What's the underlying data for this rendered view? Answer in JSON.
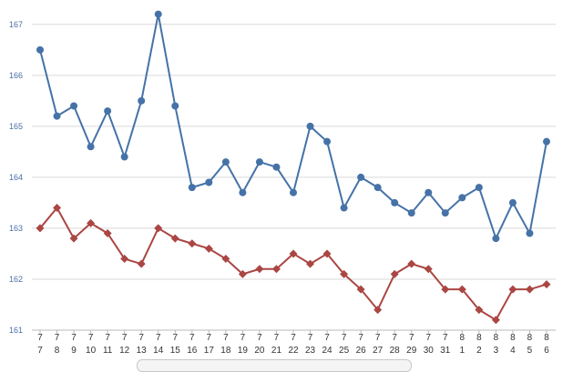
{
  "chart_data": {
    "type": "line",
    "title": "",
    "xlabel": "",
    "ylabel": "",
    "ylim": [
      161,
      167.3
    ],
    "yticks": [
      "161",
      "162",
      "163",
      "164",
      "165",
      "166",
      "167"
    ],
    "grid": true,
    "categories": [
      {
        "month": "7",
        "day": "7"
      },
      {
        "month": "7",
        "day": "8"
      },
      {
        "month": "7",
        "day": "9"
      },
      {
        "month": "7",
        "day": "10"
      },
      {
        "month": "7",
        "day": "11"
      },
      {
        "month": "7",
        "day": "12"
      },
      {
        "month": "7",
        "day": "13"
      },
      {
        "month": "7",
        "day": "14"
      },
      {
        "month": "7",
        "day": "15"
      },
      {
        "month": "7",
        "day": "16"
      },
      {
        "month": "7",
        "day": "17"
      },
      {
        "month": "7",
        "day": "18"
      },
      {
        "month": "7",
        "day": "19"
      },
      {
        "month": "7",
        "day": "20"
      },
      {
        "month": "7",
        "day": "21"
      },
      {
        "month": "7",
        "day": "22"
      },
      {
        "month": "7",
        "day": "23"
      },
      {
        "month": "7",
        "day": "24"
      },
      {
        "month": "7",
        "day": "25"
      },
      {
        "month": "7",
        "day": "26"
      },
      {
        "month": "7",
        "day": "27"
      },
      {
        "month": "7",
        "day": "28"
      },
      {
        "month": "7",
        "day": "29"
      },
      {
        "month": "7",
        "day": "30"
      },
      {
        "month": "7",
        "day": "31"
      },
      {
        "month": "8",
        "day": "1"
      },
      {
        "month": "8",
        "day": "2"
      },
      {
        "month": "8",
        "day": "3"
      },
      {
        "month": "8",
        "day": "4"
      },
      {
        "month": "8",
        "day": "5"
      },
      {
        "month": "8",
        "day": "6"
      }
    ],
    "series": [
      {
        "color": "#4572a7",
        "marker": "circle",
        "values": [
          166.5,
          165.2,
          165.4,
          164.6,
          165.3,
          164.4,
          165.5,
          167.2,
          165.4,
          163.8,
          163.9,
          164.3,
          163.7,
          164.3,
          164.2,
          163.7,
          165.0,
          164.7,
          163.4,
          164.0,
          163.8,
          163.5,
          163.3,
          163.7,
          163.3,
          163.6,
          163.8,
          162.8,
          163.5,
          162.9,
          164.7
        ]
      },
      {
        "color": "#aa4643",
        "marker": "diamond",
        "values": [
          163.0,
          163.4,
          162.8,
          163.1,
          162.9,
          162.4,
          162.3,
          163.0,
          162.8,
          162.7,
          162.6,
          162.4,
          162.1,
          162.2,
          162.2,
          162.5,
          162.3,
          162.5,
          162.1,
          161.8,
          161.4,
          162.1,
          162.3,
          162.2,
          161.8,
          161.8,
          161.4,
          161.2,
          161.8,
          161.8,
          161.9
        ]
      }
    ]
  }
}
